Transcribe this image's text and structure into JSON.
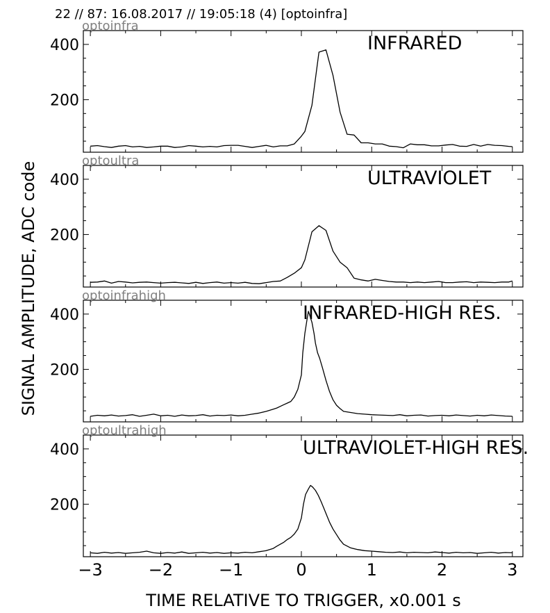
{
  "header": "22 // 87:   16.08.2017 // 19:05:18 (4)  [optoinfra]",
  "ylabel": "SIGNAL AMPLITUDE,  ADC code",
  "xlabel": "TIME RELATIVE TO TRIGGER,   x0.001 s",
  "colors": {
    "line": "#000000",
    "sublabel": "#808080",
    "frame": "#000000"
  },
  "chart_data": [
    {
      "type": "line",
      "channel": "optoinfra",
      "label": "INFRARED",
      "xlim": [
        -3.1,
        3.15
      ],
      "ylim": [
        10,
        450
      ],
      "xticks": [
        -3,
        -2,
        -1,
        0,
        1,
        2,
        3
      ],
      "yticks": [
        200,
        400
      ],
      "series": [
        {
          "x": [
            -3.0,
            -2.9,
            -2.8,
            -2.7,
            -2.6,
            -2.5,
            -2.4,
            -2.3,
            -2.2,
            -2.1,
            -2.0,
            -1.9,
            -1.8,
            -1.7,
            -1.6,
            -1.5,
            -1.4,
            -1.3,
            -1.2,
            -1.1,
            -1.0,
            -0.9,
            -0.8,
            -0.7,
            -0.6,
            -0.5,
            -0.4,
            -0.3,
            -0.2,
            -0.1,
            0.0,
            0.05,
            0.15,
            0.25,
            0.35,
            0.45,
            0.55,
            0.65,
            0.75,
            0.85,
            0.95,
            1.05,
            1.15,
            1.25,
            1.35,
            1.45,
            1.55,
            1.65,
            1.75,
            1.85,
            1.95,
            2.05,
            2.15,
            2.25,
            2.35,
            2.45,
            2.55,
            2.65,
            2.75,
            2.85,
            2.95,
            3.0
          ],
          "y": [
            32,
            34,
            30,
            27,
            32,
            34,
            29,
            31,
            27,
            29,
            32,
            32,
            27,
            29,
            34,
            32,
            29,
            31,
            29,
            34,
            35,
            35,
            31,
            27,
            31,
            35,
            29,
            33,
            33,
            40,
            68,
            85,
            180,
            372,
            380,
            288,
            155,
            75,
            72,
            44,
            44,
            40,
            40,
            32,
            30,
            26,
            40,
            37,
            37,
            33,
            33,
            36,
            38,
            32,
            31,
            38,
            32,
            38,
            35,
            34,
            31,
            30
          ]
        }
      ]
    },
    {
      "type": "line",
      "channel": "optoultra",
      "label": "ULTRAVIOLET",
      "xlim": [
        -3.1,
        3.15
      ],
      "ylim": [
        10,
        450
      ],
      "xticks": [
        -3,
        -2,
        -1,
        0,
        1,
        2,
        3
      ],
      "yticks": [
        200,
        400
      ],
      "series": [
        {
          "x": [
            -3.0,
            -2.9,
            -2.8,
            -2.7,
            -2.6,
            -2.5,
            -2.4,
            -2.3,
            -2.2,
            -2.1,
            -2.0,
            -1.9,
            -1.8,
            -1.7,
            -1.6,
            -1.5,
            -1.4,
            -1.3,
            -1.2,
            -1.1,
            -1.0,
            -0.9,
            -0.8,
            -0.7,
            -0.6,
            -0.5,
            -0.4,
            -0.3,
            -0.2,
            -0.1,
            0.0,
            0.05,
            0.15,
            0.25,
            0.35,
            0.45,
            0.55,
            0.65,
            0.75,
            0.85,
            0.95,
            1.05,
            1.15,
            1.25,
            1.35,
            1.45,
            1.55,
            1.65,
            1.75,
            1.85,
            1.95,
            2.05,
            2.15,
            2.25,
            2.35,
            2.45,
            2.55,
            2.65,
            2.75,
            2.85,
            2.95,
            3.0
          ],
          "y": [
            27,
            28,
            32,
            24,
            30,
            28,
            25,
            27,
            28,
            26,
            24,
            26,
            27,
            25,
            23,
            27,
            23,
            26,
            28,
            24,
            26,
            24,
            27,
            23,
            22,
            26,
            30,
            32,
            45,
            60,
            80,
            108,
            210,
            232,
            215,
            140,
            100,
            80,
            42,
            36,
            32,
            38,
            34,
            30,
            28,
            28,
            26,
            28,
            26,
            28,
            30,
            26,
            26,
            28,
            29,
            26,
            28,
            27,
            26,
            28,
            28,
            32
          ]
        }
      ]
    },
    {
      "type": "line",
      "channel": "optoinfrahigh",
      "label": "INFRARED-HIGH RES.",
      "xlim": [
        -3.1,
        3.15
      ],
      "ylim": [
        10,
        450
      ],
      "xticks": [
        -3,
        -2,
        -1,
        0,
        1,
        2,
        3
      ],
      "yticks": [
        200,
        400
      ],
      "series": [
        {
          "x": [
            -3.0,
            -2.9,
            -2.8,
            -2.7,
            -2.6,
            -2.5,
            -2.4,
            -2.3,
            -2.2,
            -2.1,
            -2.0,
            -1.9,
            -1.8,
            -1.7,
            -1.6,
            -1.5,
            -1.4,
            -1.3,
            -1.2,
            -1.1,
            -1.0,
            -0.9,
            -0.8,
            -0.7,
            -0.6,
            -0.5,
            -0.4,
            -0.35,
            -0.3,
            -0.25,
            -0.2,
            -0.15,
            -0.1,
            -0.05,
            0.0,
            0.02,
            0.05,
            0.08,
            0.1,
            0.12,
            0.15,
            0.18,
            0.2,
            0.23,
            0.26,
            0.3,
            0.35,
            0.4,
            0.45,
            0.5,
            0.55,
            0.6,
            0.7,
            0.8,
            0.9,
            1.0,
            1.1,
            1.2,
            1.3,
            1.4,
            1.5,
            1.6,
            1.7,
            1.8,
            1.9,
            2.0,
            2.1,
            2.2,
            2.3,
            2.4,
            2.5,
            2.6,
            2.7,
            2.8,
            2.9,
            3.0
          ],
          "y": [
            30,
            34,
            32,
            35,
            31,
            33,
            36,
            30,
            34,
            38,
            32,
            34,
            30,
            35,
            32,
            33,
            36,
            31,
            34,
            33,
            35,
            32,
            34,
            38,
            42,
            48,
            56,
            60,
            66,
            72,
            78,
            84,
            100,
            128,
            180,
            260,
            330,
            380,
            410,
            395,
            370,
            330,
            295,
            260,
            240,
            205,
            160,
            120,
            90,
            70,
            58,
            48,
            44,
            40,
            38,
            36,
            35,
            34,
            33,
            36,
            32,
            34,
            35,
            31,
            33,
            34,
            32,
            35,
            33,
            31,
            34,
            32,
            35,
            33,
            31,
            30
          ]
        }
      ]
    },
    {
      "type": "line",
      "channel": "optoultrahigh",
      "label": "ULTRAVIOLET-HIGH RES.",
      "xlim": [
        -3.1,
        3.15
      ],
      "ylim": [
        10,
        450
      ],
      "xticks": [
        -3,
        -2,
        -1,
        0,
        1,
        2,
        3
      ],
      "yticks": [
        200,
        400
      ],
      "series": [
        {
          "x": [
            -3.0,
            -2.9,
            -2.8,
            -2.7,
            -2.6,
            -2.5,
            -2.4,
            -2.3,
            -2.2,
            -2.1,
            -2.0,
            -1.9,
            -1.8,
            -1.7,
            -1.6,
            -1.5,
            -1.4,
            -1.3,
            -1.2,
            -1.1,
            -1.0,
            -0.9,
            -0.8,
            -0.7,
            -0.6,
            -0.5,
            -0.4,
            -0.35,
            -0.3,
            -0.25,
            -0.2,
            -0.15,
            -0.1,
            -0.05,
            0.0,
            0.03,
            0.06,
            0.1,
            0.13,
            0.16,
            0.2,
            0.24,
            0.28,
            0.32,
            0.36,
            0.4,
            0.45,
            0.5,
            0.55,
            0.6,
            0.7,
            0.8,
            0.9,
            1.0,
            1.1,
            1.2,
            1.3,
            1.4,
            1.5,
            1.6,
            1.7,
            1.8,
            1.9,
            2.0,
            2.1,
            2.2,
            2.3,
            2.4,
            2.5,
            2.6,
            2.7,
            2.8,
            2.9,
            3.0
          ],
          "y": [
            24,
            22,
            26,
            23,
            25,
            22,
            24,
            26,
            30,
            24,
            22,
            25,
            23,
            27,
            22,
            24,
            26,
            23,
            25,
            22,
            24,
            23,
            26,
            24,
            28,
            32,
            40,
            48,
            55,
            62,
            72,
            80,
            92,
            110,
            150,
            200,
            235,
            255,
            268,
            262,
            250,
            232,
            210,
            185,
            160,
            135,
            110,
            90,
            70,
            55,
            42,
            36,
            32,
            30,
            28,
            26,
            25,
            27,
            24,
            26,
            25,
            24,
            27,
            25,
            23,
            26,
            24,
            25,
            22,
            24,
            26,
            23,
            25,
            24
          ]
        }
      ]
    }
  ]
}
